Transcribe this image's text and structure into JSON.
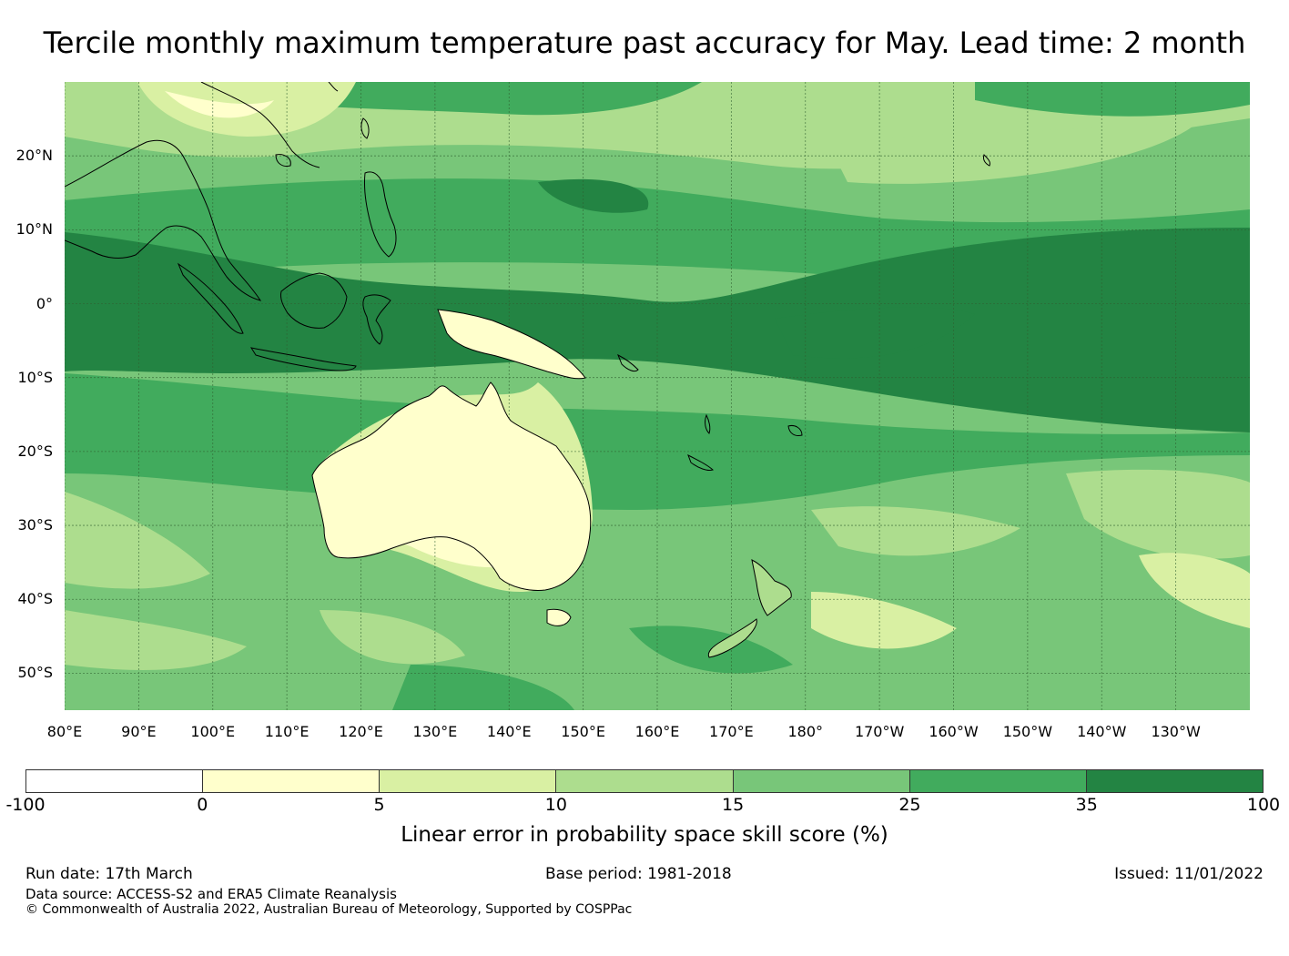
{
  "title": "Tercile monthly maximum temperature past accuracy for May. Lead time: 2 month",
  "map": {
    "latitude_labels": [
      "20°N",
      "10°N",
      "0°",
      "10°S",
      "20°S",
      "30°S",
      "40°S",
      "50°S"
    ],
    "longitude_labels": [
      "80°E",
      "90°E",
      "100°E",
      "110°E",
      "120°E",
      "130°E",
      "140°E",
      "150°E",
      "160°E",
      "170°E",
      "180°",
      "170°W",
      "160°W",
      "150°W",
      "140°W",
      "130°W"
    ],
    "extent": {
      "lon_min": 80,
      "lon_max": 240,
      "lat_min": -55,
      "lat_max": 30
    }
  },
  "colorbar": {
    "tick_labels": [
      "-100",
      "0",
      "5",
      "10",
      "15",
      "25",
      "35",
      "100"
    ],
    "colors": [
      "#ffffff",
      "#ffffcc",
      "#d9f0a3",
      "#addd8e",
      "#78c679",
      "#41ab5d",
      "#238443"
    ],
    "label": "Linear error in probability space skill score (%)"
  },
  "footer": {
    "run_date": "Run date: 17th March",
    "base_period": "Base period: 1981-2018",
    "issued": "Issued: 11/01/2022",
    "data_source": "Data source: ACCESS-S2 and ERA5 Climate Reanalysis",
    "copyright": "© Commonwealth of Australia 2022, Australian Bureau of Meteorology, Supported by COSPPac"
  }
}
